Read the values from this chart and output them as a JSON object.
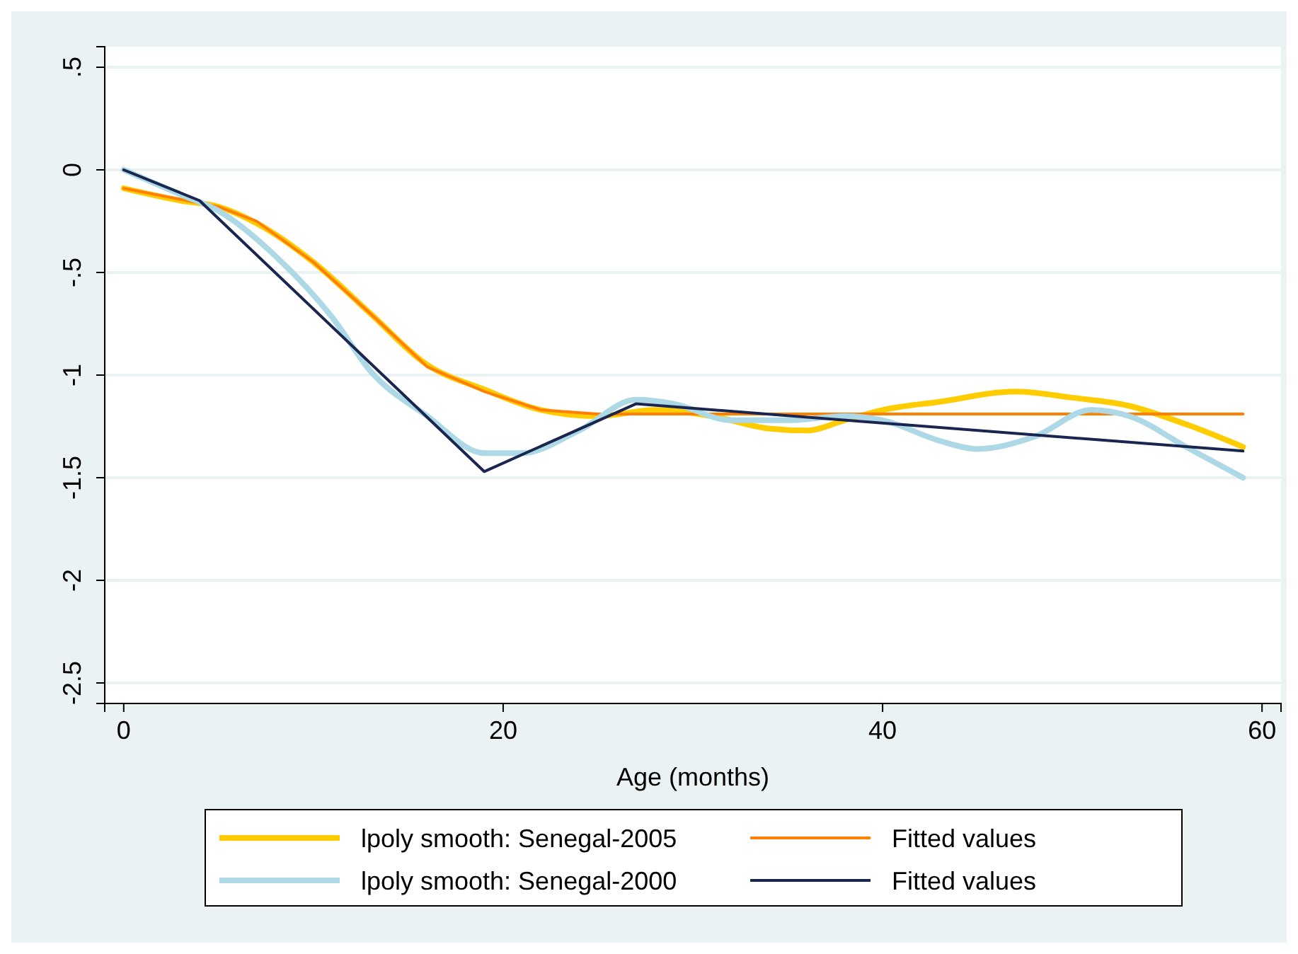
{
  "chart_data": {
    "type": "line",
    "xlabel": "Age (months)",
    "xlim": [
      -1,
      61
    ],
    "xticks": [
      0,
      20,
      40,
      60
    ],
    "ylim": [
      -2.6,
      0.6
    ],
    "yticks": [
      {
        "value": 0.5,
        "label": ".5"
      },
      0,
      {
        "value": -0.5,
        "label": "-.5"
      },
      -1,
      -1.5,
      -2,
      -2.5
    ],
    "grid": "y",
    "legend": "bottom",
    "line_style": "solid",
    "marker": "none",
    "series": [
      {
        "name": "lpoly smooth: Senegal-2005",
        "color": "#ffcc00",
        "x": [
          0,
          3,
          5,
          7,
          10,
          13,
          16,
          19,
          22,
          25,
          28,
          31,
          34,
          36,
          38,
          40,
          43,
          47,
          50,
          53,
          56,
          59
        ],
        "values": [
          -0.09,
          -0.15,
          -0.18,
          -0.26,
          -0.45,
          -0.7,
          -0.95,
          -1.07,
          -1.17,
          -1.2,
          -1.17,
          -1.2,
          -1.26,
          -1.27,
          -1.22,
          -1.17,
          -1.13,
          -1.08,
          -1.11,
          -1.15,
          -1.24,
          -1.35
        ]
      },
      {
        "name": "Fitted values",
        "color": "#ff8000",
        "x": [
          0,
          5,
          7,
          10,
          13,
          16,
          19,
          22,
          25,
          59
        ],
        "values": [
          -0.09,
          -0.18,
          -0.25,
          -0.45,
          -0.7,
          -0.96,
          -1.08,
          -1.17,
          -1.19,
          -1.19
        ]
      },
      {
        "name": "lpoly smooth: Senegal-2000",
        "color": "#add8e6",
        "x": [
          0,
          3,
          5,
          8,
          11,
          13,
          16,
          19,
          21,
          24,
          27,
          29,
          32,
          35,
          38,
          40,
          43,
          45,
          48,
          51,
          53,
          56,
          59
        ],
        "values": [
          0,
          -0.12,
          -0.2,
          -0.42,
          -0.72,
          -0.98,
          -1.2,
          -1.38,
          -1.38,
          -1.27,
          -1.12,
          -1.14,
          -1.22,
          -1.22,
          -1.2,
          -1.22,
          -1.32,
          -1.36,
          -1.3,
          -1.17,
          -1.2,
          -1.35,
          -1.5
        ]
      },
      {
        "name": "Fitted values",
        "color": "#1a2650",
        "x": [
          0,
          4,
          19,
          27,
          59
        ],
        "values": [
          0,
          -0.15,
          -1.47,
          -1.14,
          -1.37
        ]
      }
    ]
  }
}
